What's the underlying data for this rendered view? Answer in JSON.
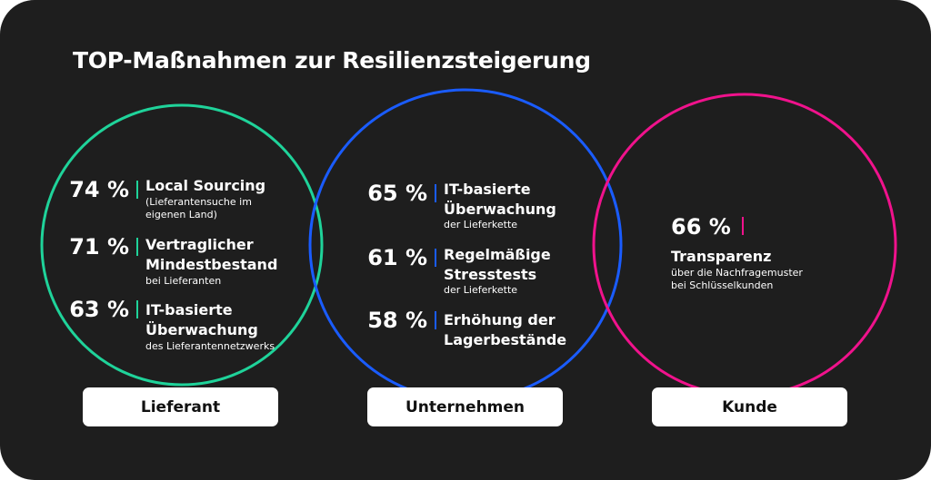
{
  "title": "TOP-Maßnahmen zur Resilienzsteigerung",
  "colors": {
    "background": "#1e1e1e",
    "lieferant": "#1fd39a",
    "unternehmen": "#1a5cff",
    "kunde": "#f0128c"
  },
  "groups": {
    "lieferant": {
      "label": "Lieferant",
      "items": [
        {
          "value": "74 %",
          "title": [
            "Local Sourcing"
          ],
          "subtitle": [
            "(Lieferantensuche im",
            "eigenen Land)"
          ]
        },
        {
          "value": "71 %",
          "title": [
            "Vertraglicher",
            "Mindestbestand"
          ],
          "subtitle": [
            "bei Lieferanten"
          ]
        },
        {
          "value": "63 %",
          "title": [
            "IT-basierte",
            "Überwachung"
          ],
          "subtitle": [
            "des Lieferantennetzwerks"
          ]
        }
      ]
    },
    "unternehmen": {
      "label": "Unternehmen",
      "items": [
        {
          "value": "65 %",
          "title": [
            "IT-basierte",
            "Überwachung"
          ],
          "subtitle": [
            "der Lieferkette"
          ]
        },
        {
          "value": "61 %",
          "title": [
            "Regelmäßige",
            "Stresstests"
          ],
          "subtitle": [
            "der Lieferkette"
          ]
        },
        {
          "value": "58 %",
          "title": [
            "Erhöhung der",
            "Lagerbestände"
          ],
          "subtitle": []
        }
      ]
    },
    "kunde": {
      "label": "Kunde",
      "items": [
        {
          "value": "66 %",
          "title": [
            "Transparenz"
          ],
          "subtitle": [
            "über die Nachfragemuster",
            "bei Schlüsselkunden"
          ]
        }
      ]
    }
  }
}
